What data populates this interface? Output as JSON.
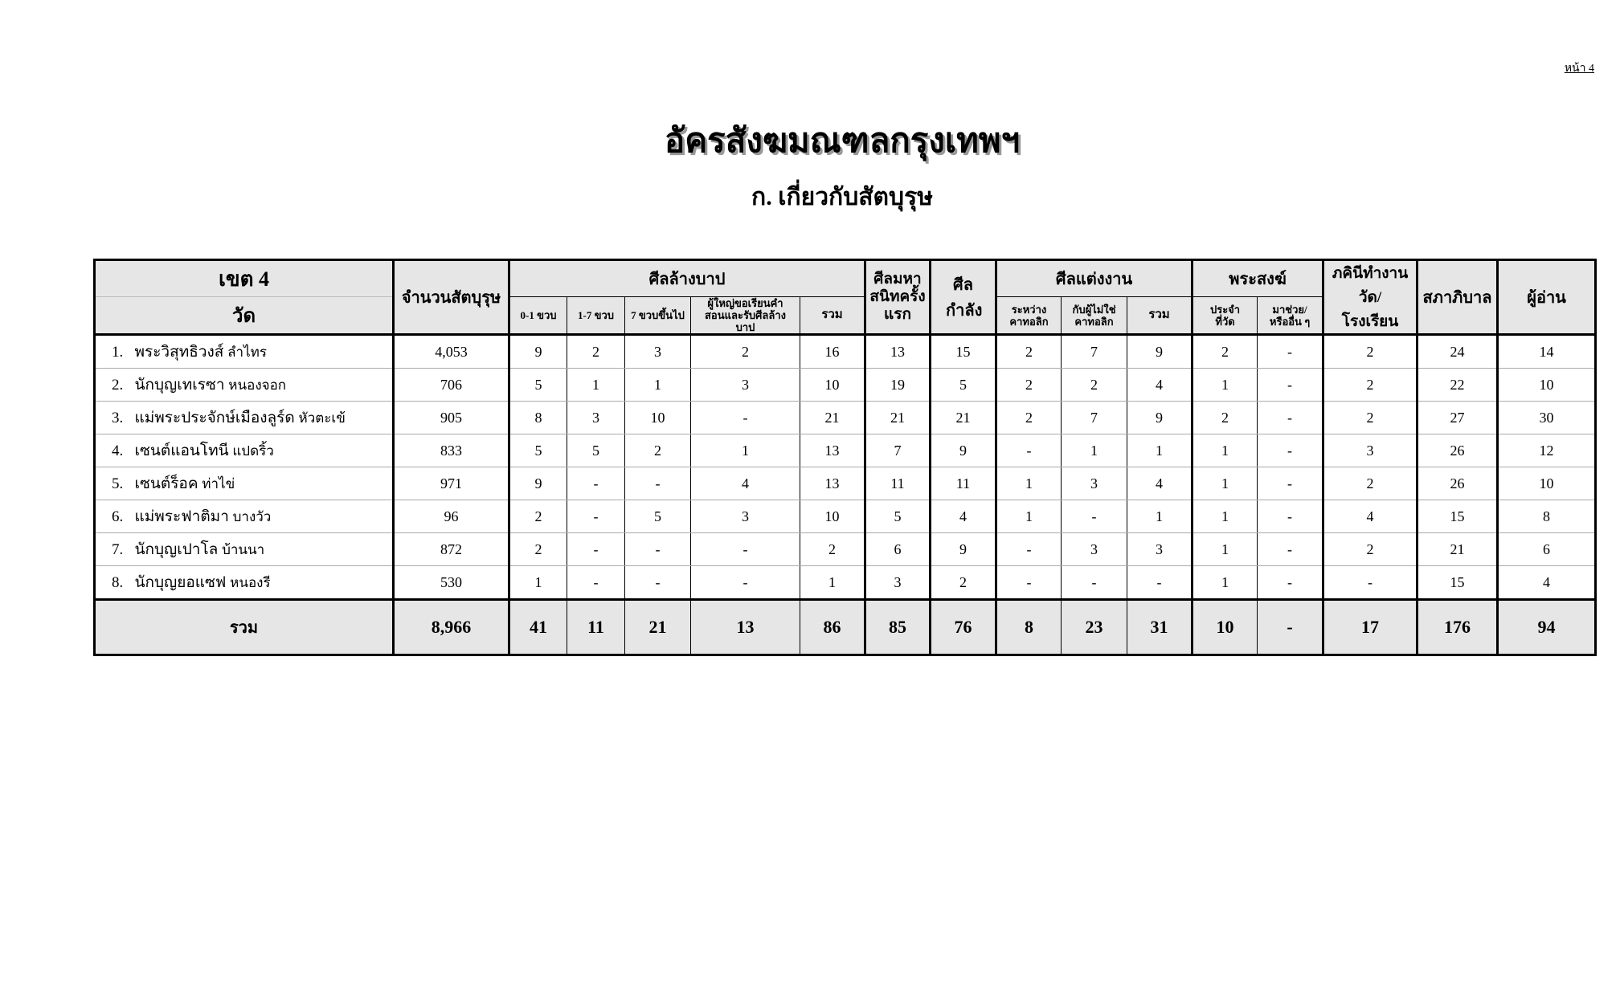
{
  "page_number": "หน้า 4",
  "title": "อัครสังฆมณฑลกรุงเทพฯ",
  "subtitle": "ก. เกี่ยวกับสัตบุรุษ",
  "table": {
    "headers": {
      "district": "เขต 4",
      "wat": "วัด",
      "parishioners": "จำนวนสัตบุรุษ",
      "baptism": "ศีลล้างบาป",
      "baptism_0_1": "0-1 ขวบ",
      "baptism_1_7": "1-7 ขวบ",
      "baptism_7_up": "7 ขวบขึ้นไป",
      "baptism_adult": "ผู้ใหญ่ขอเรียนคำสอนและรับศีลล้างบาป",
      "baptism_total": "รวม",
      "first_communion": "ศีลมหาสนิทครั้งแรก",
      "confirmation": "ศีลกำลัง",
      "marriage": "ศีลแต่งงาน",
      "marriage_catholic": "ระหว่างคาทอลิก",
      "marriage_mixed": "กับผู้ไม่ใช่คาทอลิก",
      "marriage_total": "รวม",
      "priests": "พระสงฆ์",
      "priests_resident": "ประจำที่วัด",
      "priests_helping": "มาช่วย/หรืออื่น ๆ",
      "sisters": "ภคินีทำงานวัด/โรงเรียน",
      "council": "สภาภิบาล",
      "readers": "ผู้อ่าน"
    },
    "rows": [
      {
        "no": "1.",
        "name": "พระวิสุทธิวงส์",
        "loc": "ลำไทร",
        "values": [
          "4,053",
          "9",
          "2",
          "3",
          "2",
          "16",
          "13",
          "15",
          "2",
          "7",
          "9",
          "2",
          "-",
          "2",
          "24",
          "14"
        ]
      },
      {
        "no": "2.",
        "name": "นักบุญเทเรซา",
        "loc": "หนองจอก",
        "values": [
          "706",
          "5",
          "1",
          "1",
          "3",
          "10",
          "19",
          "5",
          "2",
          "2",
          "4",
          "1",
          "-",
          "2",
          "22",
          "10"
        ]
      },
      {
        "no": "3.",
        "name": "แม่พระประจักษ์เมืองลูร์ด",
        "loc": "หัวตะเข้",
        "values": [
          "905",
          "8",
          "3",
          "10",
          "-",
          "21",
          "21",
          "21",
          "2",
          "7",
          "9",
          "2",
          "-",
          "2",
          "27",
          "30"
        ]
      },
      {
        "no": "4.",
        "name": "เซนต์แอนโทนี",
        "loc": "แปดริ้ว",
        "values": [
          "833",
          "5",
          "5",
          "2",
          "1",
          "13",
          "7",
          "9",
          "-",
          "1",
          "1",
          "1",
          "-",
          "3",
          "26",
          "12"
        ]
      },
      {
        "no": "5.",
        "name": "เซนต์ร็อค",
        "loc": "ท่าไข่",
        "values": [
          "971",
          "9",
          "-",
          "-",
          "4",
          "13",
          "11",
          "11",
          "1",
          "3",
          "4",
          "1",
          "-",
          "2",
          "26",
          "10"
        ]
      },
      {
        "no": "6.",
        "name": "แม่พระฟาติมา",
        "loc": "บางวัว",
        "values": [
          "96",
          "2",
          "-",
          "5",
          "3",
          "10",
          "5",
          "4",
          "1",
          "-",
          "1",
          "1",
          "-",
          "4",
          "15",
          "8"
        ]
      },
      {
        "no": "7.",
        "name": "นักบุญเปาโล",
        "loc": "บ้านนา",
        "values": [
          "872",
          "2",
          "-",
          "-",
          "-",
          "2",
          "6",
          "9",
          "-",
          "3",
          "3",
          "1",
          "-",
          "2",
          "21",
          "6"
        ]
      },
      {
        "no": "8.",
        "name": "นักบุญยอแซฟ",
        "loc": "หนองรี",
        "values": [
          "530",
          "1",
          "-",
          "-",
          "-",
          "1",
          "3",
          "2",
          "-",
          "-",
          "-",
          "1",
          "-",
          "-",
          "15",
          "4"
        ]
      }
    ],
    "total": {
      "label": "รวม",
      "values": [
        "8,966",
        "41",
        "11",
        "21",
        "13",
        "86",
        "85",
        "76",
        "8",
        "23",
        "31",
        "10",
        "-",
        "17",
        "176",
        "94"
      ]
    }
  }
}
